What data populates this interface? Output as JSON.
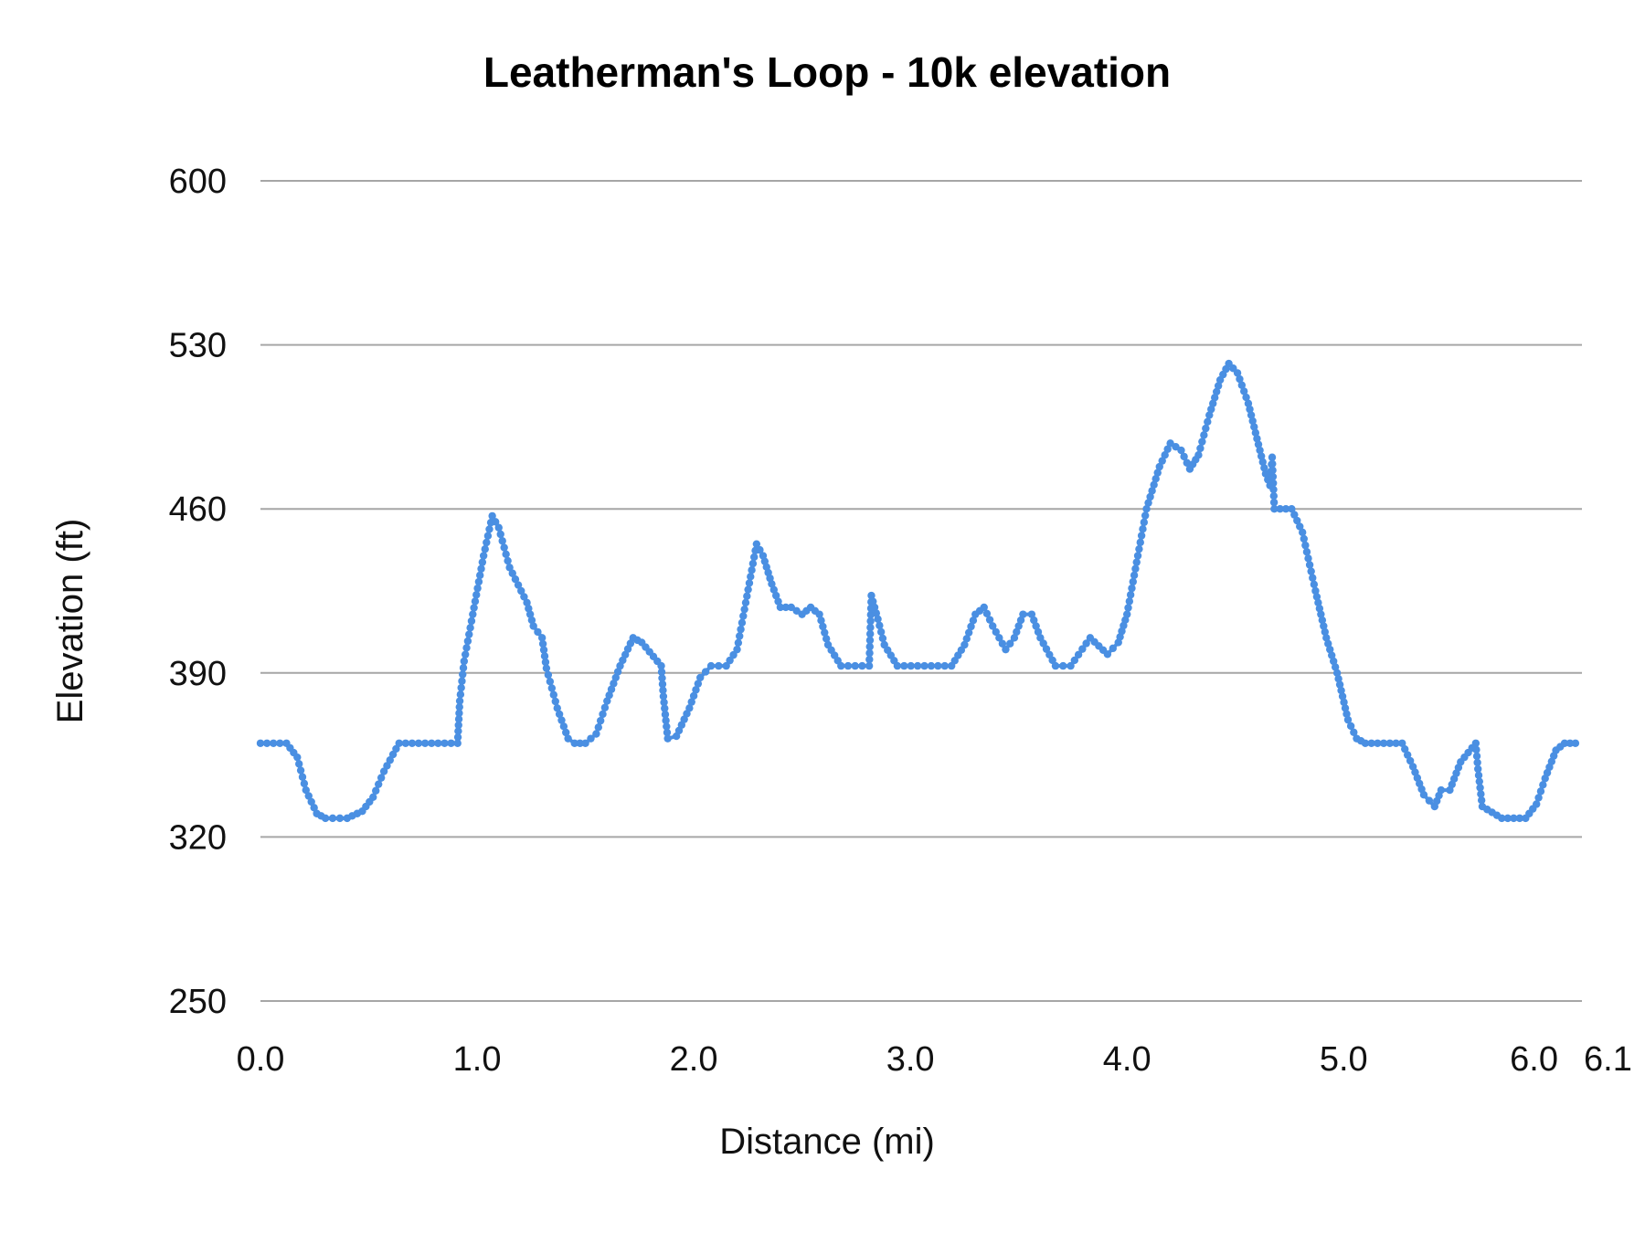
{
  "chart_data": {
    "type": "line",
    "title": "Leatherman's Loop - 10k elevation",
    "xlabel": "Distance (mi)",
    "ylabel": "Elevation (ft)",
    "xlim": [
      0,
      6.1
    ],
    "ylim": [
      250,
      600
    ],
    "yticks": [
      "250",
      "320",
      "390",
      "460",
      "530",
      "600"
    ],
    "xticks": [
      "0.0",
      "1.0",
      "2.0",
      "3.0",
      "4.0",
      "5.0",
      "6.0",
      "6.1"
    ],
    "xtick_values": [
      0,
      1,
      2,
      3,
      4,
      5,
      6,
      6.1
    ],
    "grid": true,
    "color": "#4a8fe2",
    "series": [
      {
        "name": "Elevation",
        "points": [
          [
            0,
            360
          ],
          [
            0.12,
            360
          ],
          [
            0.17,
            354
          ],
          [
            0.21,
            340
          ],
          [
            0.26,
            330
          ],
          [
            0.3,
            328
          ],
          [
            0.4,
            328
          ],
          [
            0.47,
            331
          ],
          [
            0.52,
            337
          ],
          [
            0.57,
            348
          ],
          [
            0.64,
            360
          ],
          [
            0.91,
            360
          ],
          [
            0.92,
            378
          ],
          [
            0.94,
            395
          ],
          [
            0.98,
            415
          ],
          [
            1.03,
            440
          ],
          [
            1.07,
            457
          ],
          [
            1.1,
            452
          ],
          [
            1.15,
            435
          ],
          [
            1.23,
            420
          ],
          [
            1.26,
            410
          ],
          [
            1.3,
            405
          ],
          [
            1.32,
            392
          ],
          [
            1.37,
            375
          ],
          [
            1.42,
            362
          ],
          [
            1.45,
            360
          ],
          [
            1.5,
            360
          ],
          [
            1.55,
            364
          ],
          [
            1.6,
            378
          ],
          [
            1.66,
            393
          ],
          [
            1.72,
            405
          ],
          [
            1.76,
            403
          ],
          [
            1.85,
            393
          ],
          [
            1.86,
            380
          ],
          [
            1.88,
            362
          ],
          [
            1.92,
            363
          ],
          [
            1.98,
            375
          ],
          [
            2.03,
            388
          ],
          [
            2.08,
            393
          ],
          [
            2.15,
            393
          ],
          [
            2.2,
            400
          ],
          [
            2.24,
            420
          ],
          [
            2.29,
            445
          ],
          [
            2.32,
            440
          ],
          [
            2.36,
            428
          ],
          [
            2.4,
            418
          ],
          [
            2.45,
            418
          ],
          [
            2.5,
            415
          ],
          [
            2.54,
            418
          ],
          [
            2.58,
            415
          ],
          [
            2.62,
            402
          ],
          [
            2.68,
            393
          ],
          [
            2.81,
            393
          ],
          [
            2.82,
            423
          ],
          [
            2.85,
            413
          ],
          [
            2.88,
            402
          ],
          [
            2.94,
            393
          ],
          [
            3.19,
            393
          ],
          [
            3.25,
            402
          ],
          [
            3.3,
            415
          ],
          [
            3.34,
            418
          ],
          [
            3.38,
            410
          ],
          [
            3.44,
            400
          ],
          [
            3.48,
            405
          ],
          [
            3.52,
            415
          ],
          [
            3.56,
            415
          ],
          [
            3.6,
            405
          ],
          [
            3.67,
            393
          ],
          [
            3.74,
            393
          ],
          [
            3.83,
            405
          ],
          [
            3.91,
            398
          ],
          [
            3.96,
            403
          ],
          [
            4.0,
            415
          ],
          [
            4.05,
            440
          ],
          [
            4.09,
            460
          ],
          [
            4.15,
            478
          ],
          [
            4.2,
            488
          ],
          [
            4.25,
            485
          ],
          [
            4.29,
            477
          ],
          [
            4.33,
            483
          ],
          [
            4.38,
            500
          ],
          [
            4.43,
            515
          ],
          [
            4.47,
            522
          ],
          [
            4.51,
            518
          ],
          [
            4.56,
            505
          ],
          [
            4.6,
            490
          ],
          [
            4.64,
            475
          ],
          [
            4.66,
            470
          ],
          [
            4.67,
            482
          ],
          [
            4.68,
            460
          ],
          [
            4.76,
            460
          ],
          [
            4.81,
            450
          ],
          [
            4.87,
            425
          ],
          [
            4.92,
            405
          ],
          [
            4.97,
            390
          ],
          [
            5.02,
            370
          ],
          [
            5.06,
            362
          ],
          [
            5.1,
            360
          ],
          [
            5.27,
            360
          ],
          [
            5.32,
            350
          ],
          [
            5.37,
            338
          ],
          [
            5.42,
            333
          ],
          [
            5.45,
            340
          ],
          [
            5.49,
            340
          ],
          [
            5.54,
            352
          ],
          [
            5.61,
            360
          ],
          [
            5.62,
            349
          ],
          [
            5.64,
            333
          ],
          [
            5.73,
            328
          ],
          [
            5.84,
            328
          ],
          [
            5.89,
            334
          ],
          [
            5.93,
            345
          ],
          [
            5.98,
            357
          ],
          [
            6.02,
            360
          ],
          [
            6.07,
            360
          ]
        ]
      }
    ]
  }
}
